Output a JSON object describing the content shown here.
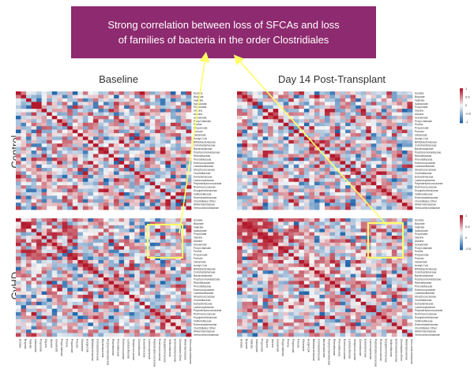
{
  "callout": {
    "line1": "Strong correlation between loss of SFCAs and loss",
    "line2": "of families of bacteria in the order Clostridiales"
  },
  "columns": [
    "Baseline",
    "Day 14 Post-Transplant"
  ],
  "rows": [
    "Control",
    "GvHD"
  ],
  "colors": {
    "callout_bg": "#8e2a6f",
    "arrow": "#ffff66",
    "box": "#ffff66",
    "high": "#b2182b",
    "low": "#2166ac",
    "mid": "#f7f7f7"
  },
  "chart_data": {
    "type": "heatmap",
    "variables": [
      "Acetate",
      "Butyrate",
      "Valerate",
      "Isobutyrate",
      "Propionate",
      "Glycine",
      "Alanine",
      "Isovalerate",
      "Prolyl-Valerate",
      "Proline",
      "Propanoate",
      "Pseudo",
      "Glutamate",
      "Acetyl-CoA",
      "Bifidobacteriaceae",
      "Coriobacteriaceae",
      "Bacteroidaceae",
      "Porphyromonadaceae",
      "Rikenellaceae",
      "Prevotellaceae",
      "Enterococcaceae",
      "Lactobacillaceae",
      "Streptococcaceae",
      "Clostridiaceae",
      "Eubacteriaceae",
      "Lachnospiraceae",
      "Peptostreptococcaceae",
      "Ruminococcaceae",
      "Erysipelotrichaceae",
      "Veillonellaceae",
      "Enterobacteriaceae",
      "Clostridiales Other",
      "Akkermansiaceae",
      "Verrucomicrobiaceae"
    ],
    "panels": [
      {
        "column": "Baseline",
        "row": "Control",
        "mean_correlation": 0.05
      },
      {
        "column": "Day 14 Post-Transplant",
        "row": "Control",
        "mean_correlation": 0.0
      },
      {
        "column": "Baseline",
        "row": "GvHD",
        "mean_correlation": 0.05
      },
      {
        "column": "Day 14 Post-Transplant",
        "row": "GvHD",
        "mean_correlation": 0.1
      }
    ],
    "color_scale": {
      "top": {
        "ticks": [
          "1",
          "0.5",
          "0",
          "-0.5",
          "-1"
        ]
      },
      "bottom": {
        "ticks": [
          "1",
          "0.5",
          "0",
          "-0.5"
        ]
      }
    },
    "range": [
      -1,
      1
    ],
    "highlight": "loss of SFCAs vs Clostridiales families (GvHD panels)"
  }
}
